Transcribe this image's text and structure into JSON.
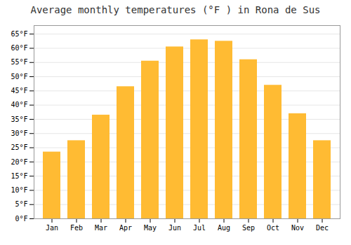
{
  "chart_data": {
    "type": "bar",
    "title": "Average monthly temperatures (°F ) in Rona de Sus",
    "categories": [
      "Jan",
      "Feb",
      "Mar",
      "Apr",
      "May",
      "Jun",
      "Jul",
      "Aug",
      "Sep",
      "Oct",
      "Nov",
      "Dec"
    ],
    "values": [
      23.5,
      27.5,
      36.5,
      46.5,
      55.5,
      60.5,
      63.0,
      62.5,
      56.0,
      47.0,
      37.0,
      27.5
    ],
    "color": "#FFBB33",
    "ylim": [
      0,
      68
    ],
    "yticks": [
      {
        "value": 0,
        "label": "0°F"
      },
      {
        "value": 5,
        "label": "5°F"
      },
      {
        "value": 10,
        "label": "10°F"
      },
      {
        "value": 15,
        "label": "15°F"
      },
      {
        "value": 20,
        "label": "20°F"
      },
      {
        "value": 25,
        "label": "25°F"
      },
      {
        "value": 30,
        "label": "30°F"
      },
      {
        "value": 35,
        "label": "35°F"
      },
      {
        "value": 40,
        "label": "40°F"
      },
      {
        "value": 45,
        "label": "45°F"
      },
      {
        "value": 50,
        "label": "50°F"
      },
      {
        "value": 55,
        "label": "55°F"
      },
      {
        "value": 60,
        "label": "60°F"
      },
      {
        "value": 65,
        "label": "65°F"
      }
    ],
    "grid": true
  }
}
